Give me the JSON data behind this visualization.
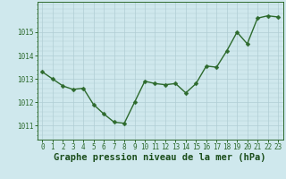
{
  "x": [
    0,
    1,
    2,
    3,
    4,
    5,
    6,
    7,
    8,
    9,
    10,
    11,
    12,
    13,
    14,
    15,
    16,
    17,
    18,
    19,
    20,
    21,
    22,
    23
  ],
  "y": [
    1013.3,
    1013.0,
    1012.7,
    1012.55,
    1012.6,
    1011.9,
    1011.5,
    1011.15,
    1011.1,
    1012.0,
    1012.9,
    1012.8,
    1012.75,
    1012.8,
    1012.4,
    1012.8,
    1013.55,
    1013.5,
    1014.2,
    1015.0,
    1014.5,
    1015.6,
    1015.7,
    1015.65
  ],
  "line_color": "#2d6a2d",
  "marker": "D",
  "marker_size": 2.5,
  "bg_color": "#cfe8ed",
  "grid_color": "#b0cdd4",
  "xlabel": "Graphe pression niveau de la mer (hPa)",
  "xlabel_color": "#1a4d1a",
  "xlabel_fontsize": 7.5,
  "ylabel_ticks": [
    1011,
    1012,
    1013,
    1014,
    1015
  ],
  "ylim": [
    1010.4,
    1016.3
  ],
  "xlim": [
    -0.5,
    23.5
  ],
  "tick_color": "#2d6a2d",
  "tick_fontsize": 5.5,
  "spine_color": "#2d6a2d",
  "bg_fig_color": "#cfe8ed"
}
